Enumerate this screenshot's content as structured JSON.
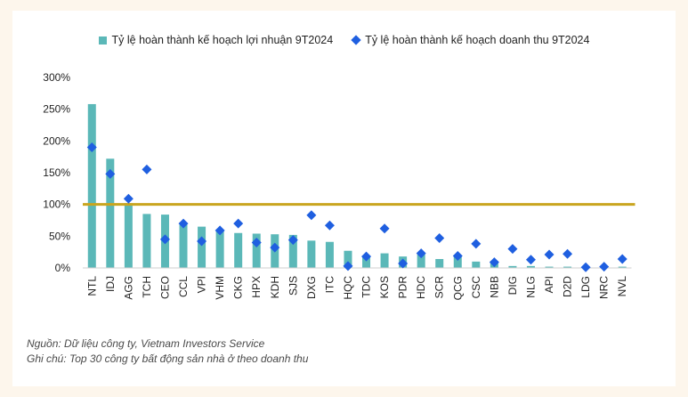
{
  "colors": {
    "bar": "#5bb8b8",
    "marker": "#1f5fe0",
    "line": "#c9a51f",
    "background": "#fdf6ec"
  },
  "chart_data": {
    "type": "bar",
    "categories": [
      "NTL",
      "IDJ",
      "AGG",
      "TCH",
      "CEO",
      "CCL",
      "VPI",
      "VHM",
      "CKG",
      "HPX",
      "KDH",
      "SJS",
      "DXG",
      "ITC",
      "HQC",
      "TDC",
      "KOS",
      "PDR",
      "HDC",
      "SCR",
      "QCG",
      "CSC",
      "NBB",
      "DIG",
      "NLG",
      "API",
      "D2D",
      "LDG",
      "NRC",
      "NVL"
    ],
    "series": [
      {
        "name": "Tỷ lệ hoàn thành kế hoạch lợi nhuận 9T2024",
        "kind": "bar",
        "values": [
          258,
          172,
          102,
          85,
          84,
          68,
          65,
          60,
          55,
          54,
          53,
          52,
          43,
          41,
          27,
          19,
          23,
          18,
          21,
          14,
          18,
          10,
          11,
          3,
          3,
          2,
          2,
          2,
          2,
          2
        ]
      },
      {
        "name": "Tỷ lệ hoàn thành kế hoạch doanh thu 9T2024",
        "kind": "marker",
        "values": [
          190,
          148,
          109,
          155,
          45,
          70,
          42,
          59,
          70,
          40,
          32,
          44,
          83,
          67,
          3,
          18,
          62,
          7,
          23,
          47,
          19,
          38,
          9,
          30,
          13,
          21,
          22,
          1,
          2,
          14
        ]
      }
    ],
    "reference_line": 100,
    "yticks": [
      "300%",
      "250%",
      "200%",
      "150%",
      "100%",
      "50%",
      "0%"
    ],
    "ylim": [
      0,
      300
    ],
    "grid": false,
    "legend_position": "top"
  },
  "notes": {
    "source": "Nguồn: Dữ liệu công ty, Vietnam Investors Service",
    "note": "Ghi chú: Top 30 công ty bất động sản nhà ở theo doanh thu"
  }
}
